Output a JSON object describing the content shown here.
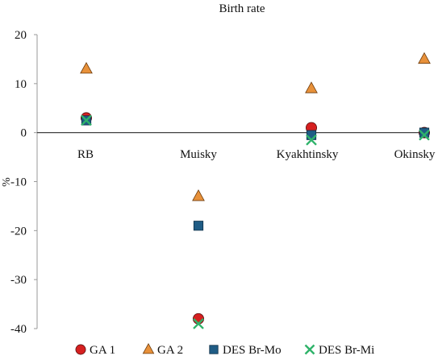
{
  "chart_data": {
    "type": "scatter",
    "title": "Birth rate",
    "xlabel": "",
    "ylabel": "%",
    "ylim": [
      -40,
      20
    ],
    "yticks": [
      20,
      10,
      0,
      -10,
      -20,
      -30,
      -40
    ],
    "categories": [
      "RB",
      "Muisky",
      "Kyakhtinsky",
      "Okinsky"
    ],
    "grid": false,
    "legend_position": "bottom",
    "series": [
      {
        "name": "GA 1",
        "marker": "circle",
        "color": "#d62020",
        "values": [
          3,
          -38,
          1,
          0
        ]
      },
      {
        "name": "GA 2",
        "marker": "triangle",
        "color": "#e8913a",
        "values": [
          13,
          -13,
          9,
          15
        ]
      },
      {
        "name": "DES Br-Mo",
        "marker": "square",
        "color": "#1f5c85",
        "values": [
          2.5,
          -19,
          -0.5,
          0
        ]
      },
      {
        "name": "DES Br-Mi",
        "marker": "x",
        "color": "#2fb36a",
        "values": [
          2.5,
          -39,
          -1.5,
          -0.5
        ]
      }
    ]
  }
}
